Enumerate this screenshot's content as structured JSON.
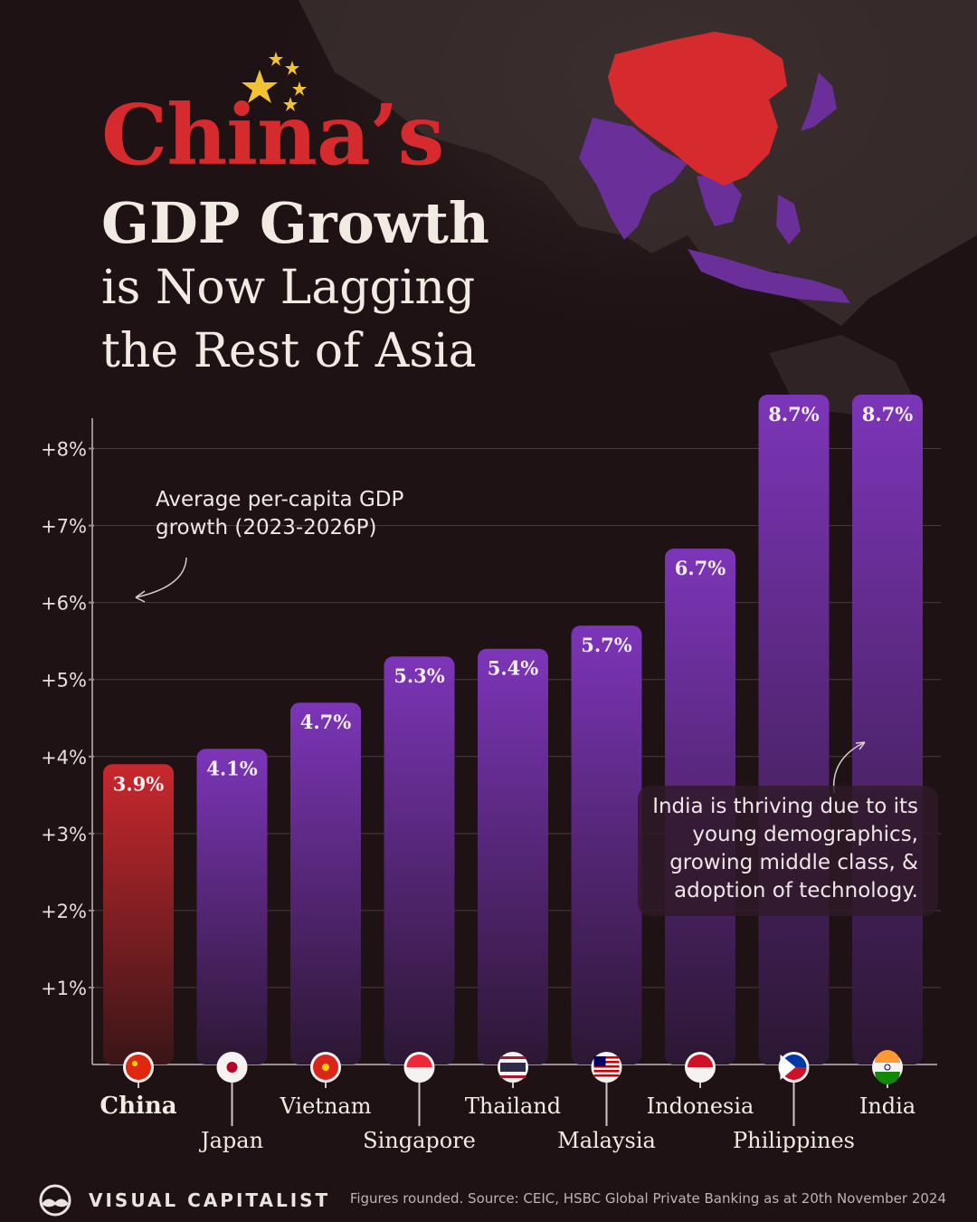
{
  "header": {
    "title_line1": "China’s",
    "title_line2": "GDP Growth",
    "title_line3": "is Now Lagging",
    "title_line4": "the Rest of Asia"
  },
  "annotations": {
    "series_note": "Average per-capita GDP growth (2023-2026P)",
    "india_note": "India is thriving due to its young demographics, growing middle class, & adoption of technology."
  },
  "colors": {
    "background": "#1e1214",
    "china_bar": "#c8282d",
    "other_bars": "#7c35b8",
    "title_accent": "#d52b2f"
  },
  "chart_data": {
    "type": "bar",
    "categories": [
      "China",
      "Japan",
      "Vietnam",
      "Singapore",
      "Thailand",
      "Malaysia",
      "Indonesia",
      "Philippines",
      "India"
    ],
    "values": [
      3.9,
      4.1,
      4.7,
      5.3,
      5.4,
      5.7,
      6.7,
      8.7,
      8.7
    ],
    "value_labels": [
      "3.9%",
      "4.1%",
      "4.7%",
      "5.3%",
      "5.4%",
      "5.7%",
      "6.7%",
      "8.7%",
      "8.7%"
    ],
    "highlight": "China",
    "ylim": [
      0,
      8.7
    ],
    "yticks": [
      1,
      2,
      3,
      4,
      5,
      6,
      7,
      8
    ],
    "ytick_labels": [
      "+1%",
      "+2%",
      "+3%",
      "+4%",
      "+5%",
      "+6%",
      "+7%",
      "+8%"
    ],
    "grid": true,
    "flags": [
      "china-flag-icon",
      "japan-flag-icon",
      "vietnam-flag-icon",
      "singapore-flag-icon",
      "thailand-flag-icon",
      "malaysia-flag-icon",
      "indonesia-flag-icon",
      "philippines-flag-icon",
      "india-flag-icon"
    ]
  },
  "footer": {
    "brand": "VISUAL CAPITALIST",
    "source": "Figures rounded. Source: CEIC, HSBC Global Private Banking as at 20th November 2024"
  }
}
